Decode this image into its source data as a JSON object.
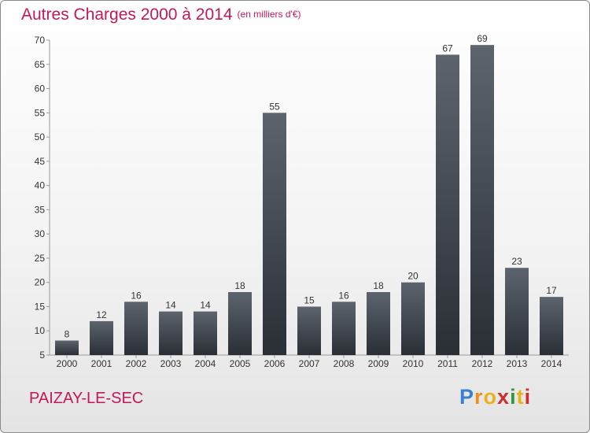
{
  "chart_data": {
    "type": "bar",
    "title": "Autres Charges 2000 à 2014",
    "subtitle": "(en milliers d'€)",
    "categories": [
      "2000",
      "2001",
      "2002",
      "2003",
      "2004",
      "2005",
      "2006",
      "2007",
      "2008",
      "2009",
      "2010",
      "2011",
      "2012",
      "2013",
      "2014"
    ],
    "values": [
      8,
      12,
      16,
      14,
      14,
      18,
      55,
      15,
      16,
      18,
      20,
      67,
      69,
      23,
      17
    ],
    "ylim": [
      5,
      70
    ],
    "yticks": [
      5,
      10,
      15,
      20,
      25,
      30,
      35,
      40,
      45,
      50,
      55,
      60,
      65,
      70
    ],
    "xlabel": "",
    "ylabel": "",
    "grid": false
  },
  "commune": "PAIZAY-LE-SEC",
  "logo": {
    "letters": [
      "P",
      "r",
      "o",
      "x",
      "i",
      "t",
      "i"
    ],
    "colors": [
      "#3a7fd0",
      "#f28c1c",
      "#e8b21c",
      "#d02c2c",
      "#2c9a3c",
      "#e8b21c",
      "#d02c2c"
    ]
  },
  "colors": {
    "title": "#c2185b",
    "bar_top": "#5d646d",
    "bar_bottom": "#2a2f36"
  }
}
